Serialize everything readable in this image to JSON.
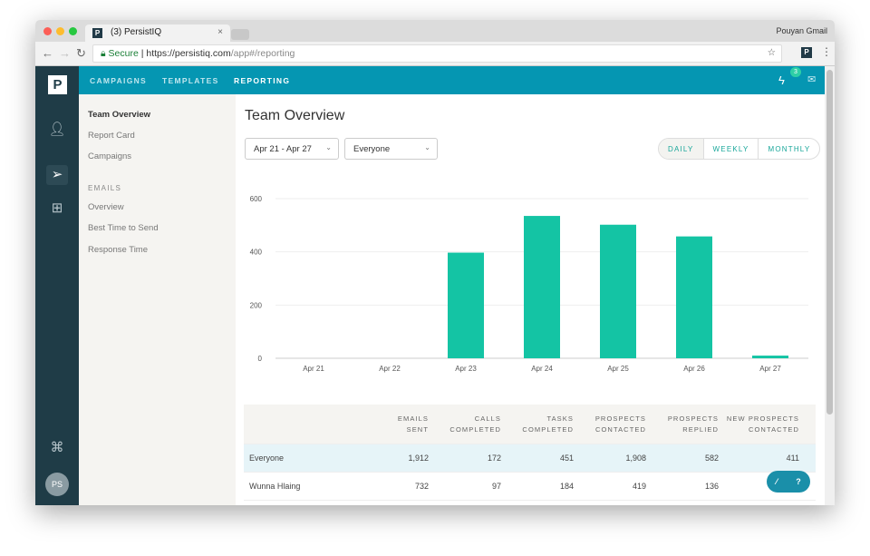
{
  "browser": {
    "tab_title": "(3) PersistIQ",
    "favicon": "P",
    "user": "Pouyan Gmail",
    "secure_label": "Secure",
    "url_host": "https://persistiq.com",
    "url_path": "/app#/reporting",
    "ext_icon": "P"
  },
  "topnav": {
    "items": [
      "CAMPAIGNS",
      "TEMPLATES",
      "REPORTING"
    ],
    "active": "REPORTING",
    "notification_count": "3"
  },
  "leftbar": {
    "logo": "P",
    "avatar": "PS"
  },
  "subnav": {
    "items": [
      "Team Overview",
      "Report Card",
      "Campaigns"
    ],
    "emails_header": "EMAILS",
    "email_items": [
      "Overview",
      "Best Time to Send",
      "Response Time"
    ]
  },
  "main": {
    "title": "Team Overview",
    "date_range": "Apr 21 - Apr 27",
    "team_filter": "Everyone",
    "periods": [
      "DAILY",
      "WEEKLY",
      "MONTHLY"
    ],
    "active_period": "DAILY"
  },
  "chart_data": {
    "type": "bar",
    "categories": [
      "Apr 21",
      "Apr 22",
      "Apr 23",
      "Apr 24",
      "Apr 25",
      "Apr 26",
      "Apr 27"
    ],
    "values": [
      0,
      0,
      397,
      535,
      502,
      458,
      10
    ],
    "ylim": [
      0,
      600
    ],
    "yticks": [
      0,
      200,
      400,
      600
    ],
    "color": "#14c4a4",
    "grid": true
  },
  "table": {
    "headers": [
      [
        "",
        ""
      ],
      [
        "EMAILS",
        "SENT"
      ],
      [
        "CALLS",
        "COMPLETED"
      ],
      [
        "TASKS",
        "COMPLETED"
      ],
      [
        "PROSPECTS",
        "CONTACTED"
      ],
      [
        "PROSPECTS",
        "REPLIED"
      ],
      [
        "NEW PROSPECTS",
        "CONTACTED"
      ]
    ],
    "rows": [
      [
        "Everyone",
        "1,912",
        "172",
        "451",
        "1,908",
        "582",
        "411"
      ],
      [
        "Wunna Hlaing",
        "732",
        "97",
        "184",
        "419",
        "136",
        ""
      ]
    ]
  },
  "help": {
    "wand": "⁄",
    "question": "?"
  }
}
